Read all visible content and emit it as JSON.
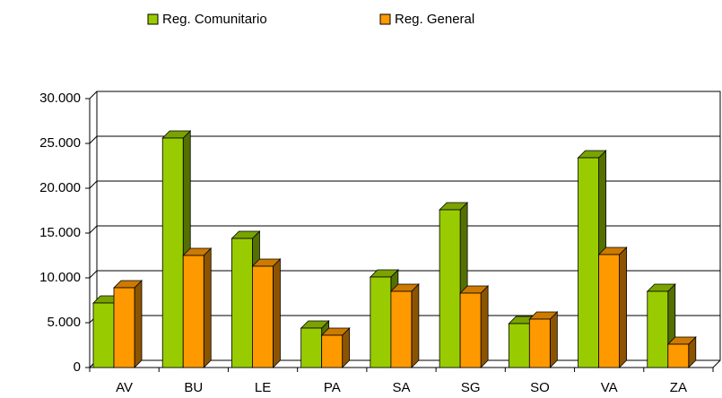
{
  "chart_data": {
    "type": "bar3d",
    "categories": [
      "AV",
      "BU",
      "LE",
      "PA",
      "SA",
      "SG",
      "SO",
      "VA",
      "ZA"
    ],
    "series": [
      {
        "name": "Reg. Comunitario",
        "color": "#99cc00",
        "values": [
          7200,
          25600,
          14400,
          4400,
          10100,
          17600,
          4900,
          23400,
          8500
        ]
      },
      {
        "name": "Reg. General",
        "color": "#ff9900",
        "values": [
          8900,
          12500,
          11300,
          3600,
          8500,
          8300,
          5400,
          12600,
          2600
        ]
      }
    ],
    "ylim": [
      0,
      30000
    ],
    "yticks": [
      0,
      {
        "value": 5000,
        "label": "5.000"
      },
      {
        "value": 10000,
        "label": "10.000"
      },
      {
        "value": 15000,
        "label": "15.000"
      },
      {
        "value": 20000,
        "label": "20.000"
      },
      {
        "value": 25000,
        "label": "25.000"
      },
      {
        "value": 30000,
        "label": "30.000"
      }
    ],
    "grid": true,
    "legend": "top"
  }
}
